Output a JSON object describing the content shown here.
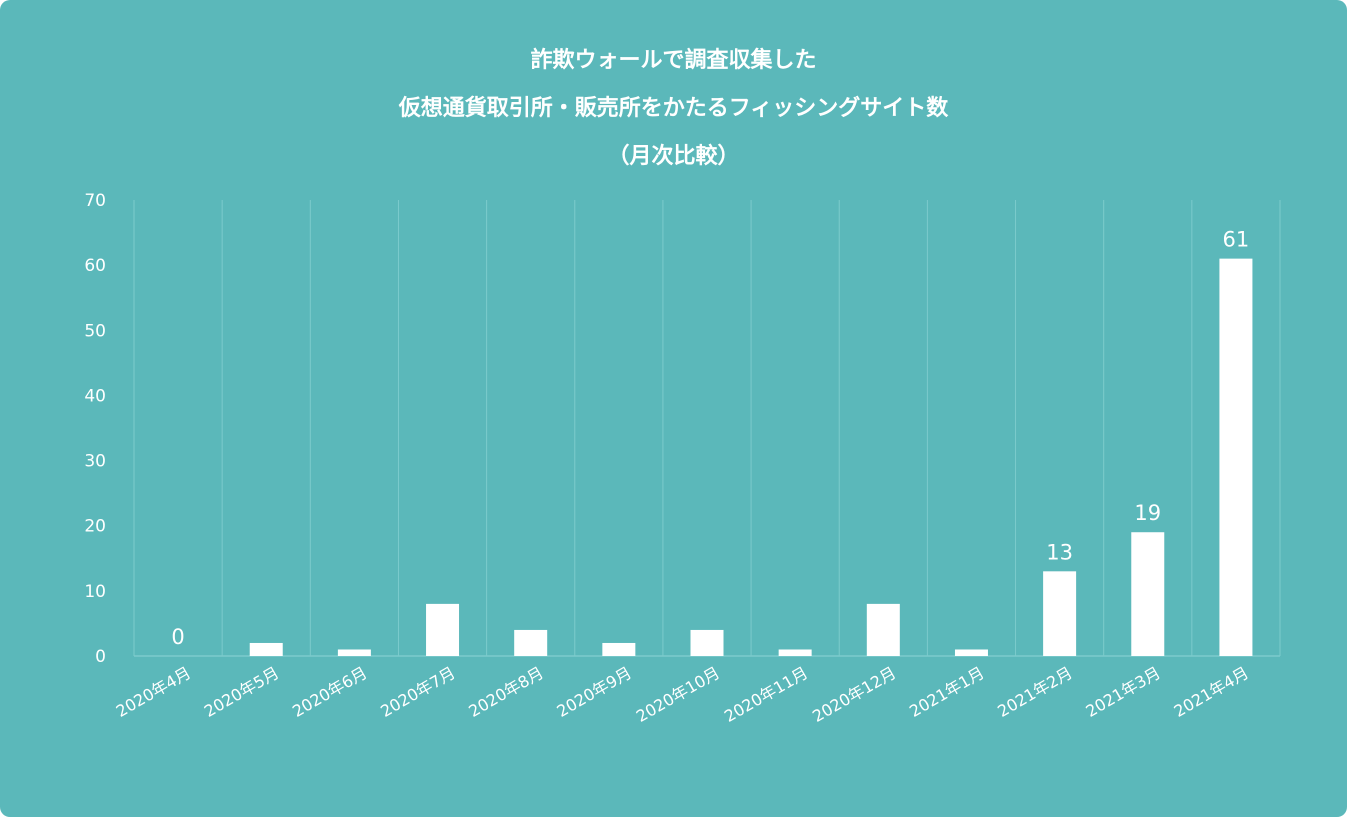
{
  "chart_data": {
    "type": "bar",
    "title_lines": [
      "詐欺ウォールで調査収集した",
      "仮想通貨取引所・販売所をかたるフィッシングサイト数",
      "（月次比較）"
    ],
    "categories": [
      "2020年4月",
      "2020年5月",
      "2020年6月",
      "2020年7月",
      "2020年8月",
      "2020年9月",
      "2020年10月",
      "2020年11月",
      "2020年12月",
      "2021年1月",
      "2021年2月",
      "2021年3月",
      "2021年4月"
    ],
    "values": [
      0,
      2,
      1,
      8,
      4,
      2,
      4,
      1,
      8,
      1,
      13,
      19,
      61
    ],
    "data_labels": {
      "0": "0",
      "10": "13",
      "11": "19",
      "12": "61"
    },
    "yticks": [
      0,
      10,
      20,
      30,
      40,
      50,
      60,
      70
    ],
    "ylim": [
      0,
      70
    ],
    "xlabel": "",
    "ylabel": "",
    "grid": "vertical",
    "colors": {
      "background": "#5bb8ba",
      "bar": "#ffffff",
      "grid": "#7ccbcc"
    }
  }
}
